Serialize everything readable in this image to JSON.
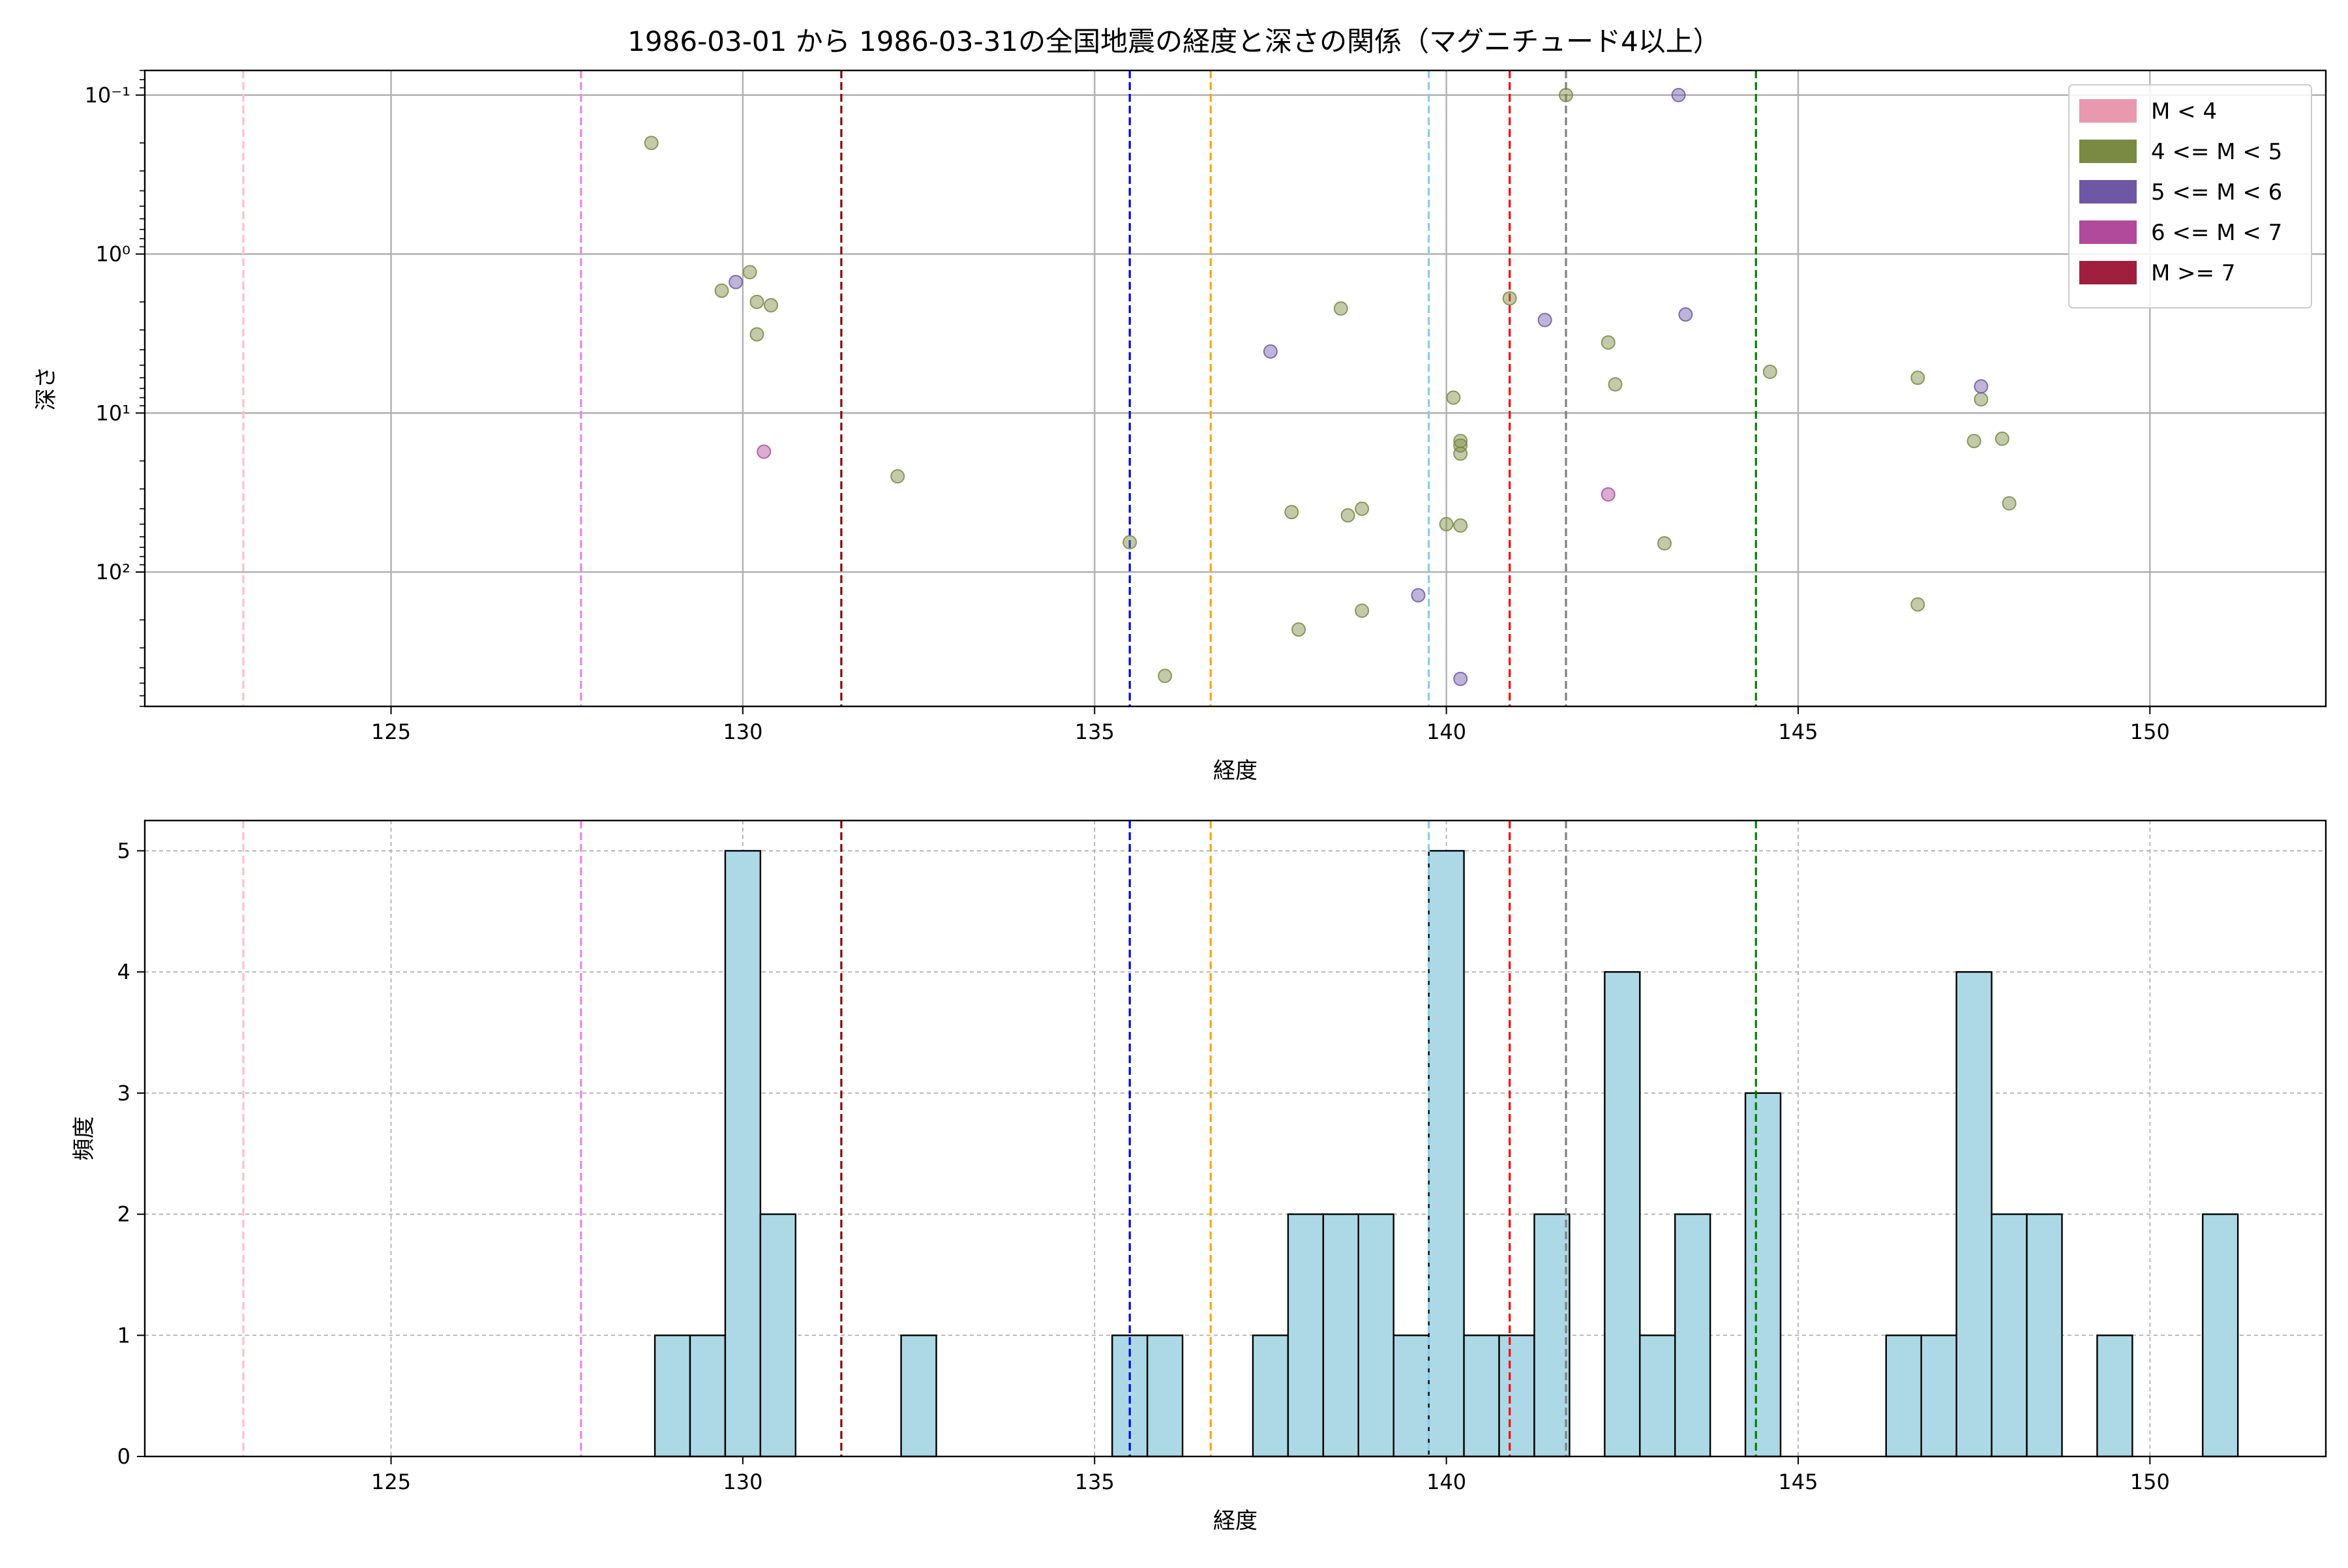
{
  "figure": {
    "title": "1986-03-01 から 1986-03-31の全国地震の経度と深さの関係（マグニチュード4以上）"
  },
  "chart_data": [
    {
      "type": "scatter",
      "xlabel": "経度",
      "ylabel": "深さ",
      "xlim": [
        121.5,
        152.5
      ],
      "ylim": [
        0.07,
        700
      ],
      "y_scale": "log",
      "y_inverted": true,
      "x_ticks": [
        125,
        130,
        135,
        140,
        145,
        150
      ],
      "x_tick_labels": [
        "125",
        "130",
        "135",
        "140",
        "145",
        "150"
      ],
      "y_ticks": [
        0.1,
        1,
        10,
        100
      ],
      "y_tick_labels": [
        "10⁻¹",
        "10⁰",
        "10¹",
        "10²"
      ],
      "grid": true,
      "legend": {
        "position": "top-right",
        "entries": [
          {
            "label": "M < 4",
            "color": "#e899b0"
          },
          {
            "label": "4 <= M < 5",
            "color": "#7a8a42"
          },
          {
            "label": "5 <= M < 6",
            "color": "#6e58a6"
          },
          {
            "label": "6 <= M < 7",
            "color": "#b24a9c"
          },
          {
            "label": "M >= 7",
            "color": "#a01f3f"
          }
        ]
      },
      "series": [
        {
          "name": "4 <= M < 5",
          "color": "#7a8a42",
          "points": [
            [
              128.7,
              0.2
            ],
            [
              129.7,
              1.7
            ],
            [
              130.1,
              1.3
            ],
            [
              130.2,
              2.0
            ],
            [
              130.4,
              2.1
            ],
            [
              130.2,
              3.2
            ],
            [
              132.2,
              25
            ],
            [
              135.5,
              65
            ],
            [
              136.0,
              450
            ],
            [
              137.8,
              42
            ],
            [
              137.9,
              230
            ],
            [
              138.5,
              2.2
            ],
            [
              138.6,
              44
            ],
            [
              138.8,
              175
            ],
            [
              138.8,
              40
            ],
            [
              140.0,
              50
            ],
            [
              140.1,
              8.0
            ],
            [
              140.2,
              16
            ],
            [
              140.2,
              15
            ],
            [
              140.2,
              18
            ],
            [
              140.2,
              51
            ],
            [
              140.9,
              1.9
            ],
            [
              141.7,
              0.1
            ],
            [
              142.3,
              3.6
            ],
            [
              142.4,
              6.6
            ],
            [
              143.1,
              66
            ],
            [
              144.6,
              5.5
            ],
            [
              146.7,
              6.0
            ],
            [
              146.7,
              160
            ],
            [
              147.6,
              8.2
            ],
            [
              147.5,
              15
            ],
            [
              147.9,
              14.5
            ],
            [
              148.0,
              37
            ]
          ]
        },
        {
          "name": "5 <= M < 6",
          "color": "#6e58a6",
          "points": [
            [
              129.9,
              1.5
            ],
            [
              137.5,
              4.1
            ],
            [
              139.6,
              140
            ],
            [
              140.2,
              470
            ],
            [
              141.4,
              2.6
            ],
            [
              143.3,
              0.1
            ],
            [
              143.4,
              2.4
            ],
            [
              147.6,
              6.8
            ]
          ]
        },
        {
          "name": "6 <= M < 7",
          "color": "#b24a9c",
          "points": [
            [
              130.3,
              17.5
            ],
            [
              142.3,
              32.5
            ]
          ]
        }
      ],
      "vlines": [
        {
          "x": 122.9,
          "color": "pink"
        },
        {
          "x": 127.7,
          "color": "violet"
        },
        {
          "x": 131.4,
          "color": "darkred"
        },
        {
          "x": 135.5,
          "color": "blue"
        },
        {
          "x": 136.65,
          "color": "orange"
        },
        {
          "x": 139.75,
          "color": "skyblue"
        },
        {
          "x": 140.9,
          "color": "red"
        },
        {
          "x": 141.7,
          "color": "gray"
        },
        {
          "x": 144.4,
          "color": "green"
        }
      ]
    },
    {
      "type": "bar",
      "subtype": "histogram",
      "xlabel": "経度",
      "ylabel": "頻度",
      "xlim": [
        121.5,
        152.5
      ],
      "ylim": [
        0,
        5.25
      ],
      "x_ticks": [
        125,
        130,
        135,
        140,
        145,
        150
      ],
      "x_tick_labels": [
        "125",
        "130",
        "135",
        "140",
        "145",
        "150"
      ],
      "y_ticks": [
        0,
        1,
        2,
        3,
        4,
        5
      ],
      "y_tick_labels": [
        "0",
        "1",
        "2",
        "3",
        "4",
        "5"
      ],
      "grid": true,
      "bar_color": "#add8e6",
      "bin_edges": [
        128.75,
        129.25,
        129.75,
        130.25,
        130.75,
        132.25,
        132.75,
        135.25,
        135.75,
        136.25,
        137.25,
        137.75,
        138.25,
        138.75,
        139.25,
        139.75,
        140.25,
        140.75,
        141.25,
        141.75,
        142.25,
        142.75,
        143.25,
        143.75,
        144.25,
        144.75,
        146.25,
        146.75,
        147.25,
        147.75,
        148.25,
        148.75,
        149.25,
        149.75,
        150.75,
        151.25
      ],
      "bins": [
        {
          "x0": 128.75,
          "x1": 129.25,
          "count": 1
        },
        {
          "x0": 129.25,
          "x1": 129.75,
          "count": 1
        },
        {
          "x0": 129.75,
          "x1": 130.25,
          "count": 5
        },
        {
          "x0": 130.25,
          "x1": 130.75,
          "count": 2
        },
        {
          "x0": 132.25,
          "x1": 132.75,
          "count": 1
        },
        {
          "x0": 135.25,
          "x1": 135.75,
          "count": 1
        },
        {
          "x0": 135.75,
          "x1": 136.25,
          "count": 1
        },
        {
          "x0": 137.25,
          "x1": 137.75,
          "count": 1
        },
        {
          "x0": 137.75,
          "x1": 138.25,
          "count": 2
        },
        {
          "x0": 138.25,
          "x1": 138.75,
          "count": 2
        },
        {
          "x0": 138.75,
          "x1": 139.25,
          "count": 2
        },
        {
          "x0": 139.25,
          "x1": 139.75,
          "count": 1
        },
        {
          "x0": 139.75,
          "x1": 140.25,
          "count": 5
        },
        {
          "x0": 140.25,
          "x1": 140.75,
          "count": 1
        },
        {
          "x0": 140.75,
          "x1": 141.25,
          "count": 1
        },
        {
          "x0": 141.25,
          "x1": 141.75,
          "count": 2
        },
        {
          "x0": 142.25,
          "x1": 142.75,
          "count": 4
        },
        {
          "x0": 142.75,
          "x1": 143.25,
          "count": 1
        },
        {
          "x0": 143.25,
          "x1": 143.75,
          "count": 2
        },
        {
          "x0": 144.25,
          "x1": 144.75,
          "count": 3
        },
        {
          "x0": 146.25,
          "x1": 146.75,
          "count": 1
        },
        {
          "x0": 146.75,
          "x1": 147.25,
          "count": 1
        },
        {
          "x0": 147.25,
          "x1": 147.75,
          "count": 4
        },
        {
          "x0": 147.75,
          "x1": 148.25,
          "count": 2
        },
        {
          "x0": 148.25,
          "x1": 148.75,
          "count": 2
        },
        {
          "x0": 149.25,
          "x1": 149.75,
          "count": 1
        },
        {
          "x0": 150.75,
          "x1": 151.25,
          "count": 2
        }
      ],
      "vlines": [
        {
          "x": 122.9,
          "color": "pink"
        },
        {
          "x": 127.7,
          "color": "violet"
        },
        {
          "x": 131.4,
          "color": "darkred"
        },
        {
          "x": 135.5,
          "color": "blue"
        },
        {
          "x": 136.65,
          "color": "orange"
        },
        {
          "x": 139.75,
          "color": "skyblue"
        },
        {
          "x": 140.9,
          "color": "red"
        },
        {
          "x": 141.7,
          "color": "gray"
        },
        {
          "x": 144.4,
          "color": "green"
        }
      ]
    }
  ]
}
